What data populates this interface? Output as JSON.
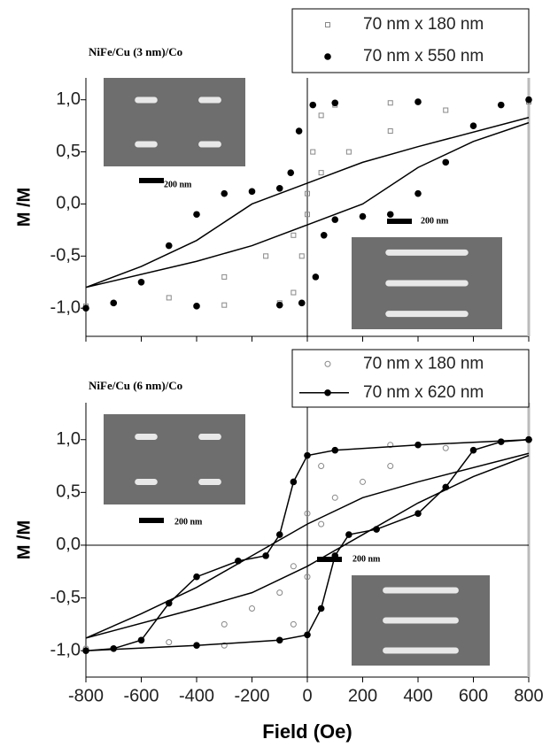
{
  "chart_data": [
    {
      "type": "line",
      "title": "NiFe/Cu (3 nm)/Co",
      "ylabel": "M /M",
      "xlim": [
        -800,
        800
      ],
      "xticks": [
        -800,
        -600,
        -400,
        -200,
        0,
        200,
        400,
        600,
        800
      ],
      "show_xtick_labels": false,
      "ylim": [
        -1.27,
        1.21
      ],
      "yticks": [
        {
          "value": -1,
          "label": "-1,0"
        },
        {
          "value": -0.5,
          "label": "-0,5"
        },
        {
          "value": 0,
          "label": "0,0"
        },
        {
          "value": 0.5,
          "label": "0,5"
        },
        {
          "value": 1,
          "label": "1,0"
        }
      ],
      "vline": 0,
      "hline": null,
      "annotations": [
        "200 nm",
        "200 nm"
      ],
      "series": [
        {
          "name": "70 nm x 180 nm",
          "color": "#888888",
          "marker": "open-square",
          "line": false,
          "x": [
            800,
            300,
            100,
            50,
            20,
            0,
            -50,
            -150,
            -300,
            -500,
            -800,
            -300,
            -100,
            -50,
            -20,
            0,
            50,
            150,
            300,
            500,
            800
          ],
          "values": [
            1.0,
            0.97,
            0.95,
            0.85,
            0.5,
            0.1,
            -0.3,
            -0.5,
            -0.7,
            -0.9,
            -0.98,
            -0.97,
            -0.95,
            -0.85,
            -0.5,
            -0.1,
            0.3,
            0.5,
            0.7,
            0.9,
            0.98
          ]
        },
        {
          "name": "70 nm x 550 nm",
          "color": "#000000",
          "marker": "filled",
          "line": false,
          "x": [
            800,
            400,
            100,
            20,
            -30,
            -60,
            -100,
            -200,
            -300,
            -400,
            -500,
            -600,
            -700,
            -800,
            -400,
            -100,
            -20,
            30,
            60,
            100,
            200,
            300,
            400,
            500,
            600,
            700
          ],
          "values": [
            1.0,
            0.98,
            0.97,
            0.95,
            0.7,
            0.3,
            0.15,
            0.12,
            0.1,
            -0.1,
            -0.4,
            -0.75,
            -0.95,
            -1.0,
            -0.98,
            -0.97,
            -0.95,
            -0.7,
            -0.3,
            -0.15,
            -0.12,
            -0.1,
            0.1,
            0.4,
            0.75,
            0.95
          ]
        },
        {
          "color": "#000000",
          "marker": "none",
          "line": true,
          "x": [
            800,
            400,
            200,
            0,
            -200,
            -400,
            -600,
            -800,
            -400,
            -200,
            0,
            200,
            400,
            600,
            800
          ],
          "values": [
            0.83,
            0.55,
            0.4,
            0.2,
            0.0,
            -0.35,
            -0.6,
            -0.8,
            -0.55,
            -0.4,
            -0.2,
            0.0,
            0.35,
            0.6,
            0.78
          ]
        }
      ]
    },
    {
      "type": "line",
      "title": "NiFe/Cu (6 nm)/Co",
      "ylabel": "M /M",
      "xlabel": "Field (Oe)",
      "xlim": [
        -800,
        800
      ],
      "xticks": [
        -800,
        -600,
        -400,
        -200,
        0,
        200,
        400,
        600,
        800
      ],
      "show_xtick_labels": true,
      "ylim": [
        -1.25,
        1.35
      ],
      "yticks": [
        {
          "value": -1,
          "label": "-1,0"
        },
        {
          "value": -0.5,
          "label": "-0,5"
        },
        {
          "value": 0,
          "label": "0,0"
        },
        {
          "value": 0.5,
          "label": "0,5"
        },
        {
          "value": 1,
          "label": "1,0"
        }
      ],
      "vline": 0,
      "hline": 0,
      "annotations": [
        "200 nm",
        "200 nm"
      ],
      "series": [
        {
          "name": "70 nm x 180 nm",
          "color": "#888888",
          "marker": "open",
          "line": false,
          "x": [
            800,
            300,
            100,
            50,
            0,
            -50,
            -100,
            -200,
            -300,
            -500,
            -800,
            -300,
            -100,
            -50,
            0,
            50,
            100,
            200,
            300,
            500
          ],
          "values": [
            1.0,
            0.95,
            0.9,
            0.75,
            0.3,
            -0.2,
            -0.45,
            -0.6,
            -0.75,
            -0.92,
            -0.98,
            -0.95,
            -0.9,
            -0.75,
            -0.3,
            0.2,
            0.45,
            0.6,
            0.75,
            0.92
          ]
        },
        {
          "name": "70 nm x 620 nm",
          "color": "#000000",
          "marker": "filled",
          "line": true,
          "x": [
            800,
            400,
            100,
            0,
            -50,
            -100,
            -150,
            -250,
            -400,
            -500,
            -600,
            -700,
            -800,
            -400,
            -100,
            0,
            50,
            100,
            150,
            250,
            400,
            500,
            600,
            700,
            800
          ],
          "values": [
            1.0,
            0.95,
            0.9,
            0.85,
            0.6,
            0.1,
            -0.1,
            -0.15,
            -0.3,
            -0.55,
            -0.9,
            -0.98,
            -1.0,
            -0.95,
            -0.9,
            -0.85,
            -0.6,
            -0.1,
            0.1,
            0.15,
            0.3,
            0.55,
            0.9,
            0.98,
            1.0
          ]
        },
        {
          "color": "#000000",
          "marker": "none",
          "line": true,
          "x": [
            800,
            400,
            200,
            0,
            -200,
            -400,
            -600,
            -800,
            -400,
            -200,
            0,
            200,
            400,
            600,
            800
          ],
          "values": [
            0.87,
            0.6,
            0.45,
            0.2,
            -0.1,
            -0.4,
            -0.65,
            -0.88,
            -0.6,
            -0.45,
            -0.2,
            0.1,
            0.4,
            0.65,
            0.85
          ]
        }
      ]
    }
  ]
}
